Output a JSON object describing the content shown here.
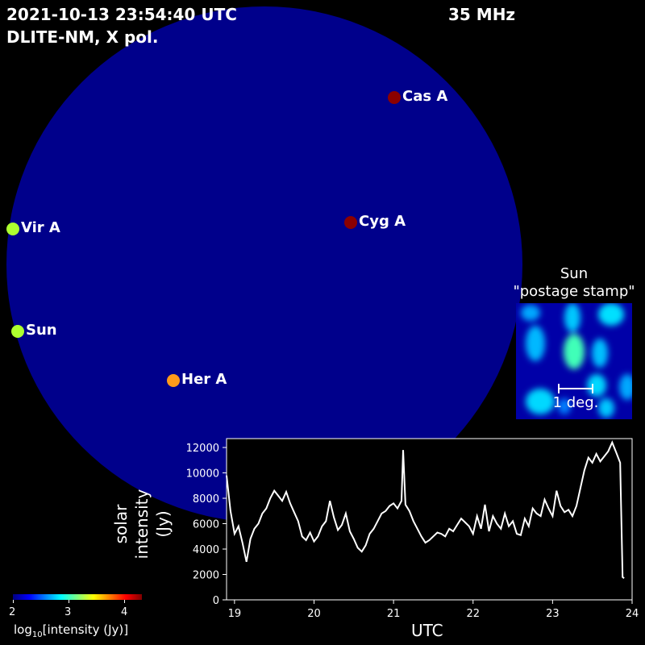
{
  "header": {
    "timestamp": "2021-10-13 23:54:40 UTC",
    "station": "DLITE-NM, X pol.",
    "frequency": "35 MHz"
  },
  "sky": {
    "color": "#00008b"
  },
  "sources": [
    {
      "name": "Cas A",
      "color": "#8b0000"
    },
    {
      "name": "Cyg A",
      "color": "#8b0000"
    },
    {
      "name": "Vir A",
      "color": "#adff2f"
    },
    {
      "name": "Sun",
      "color": "#adff2f"
    },
    {
      "name": "Her A",
      "color": "#ff9a1a"
    }
  ],
  "stamp": {
    "title_line1": "Sun",
    "title_line2": "\"postage stamp\"",
    "scale_label": "1 deg."
  },
  "colorbar": {
    "ticks": [
      "2",
      "3",
      "4"
    ],
    "label_prefix": "log",
    "label_sub": "10",
    "label_suffix": "[intensity (Jy)]"
  },
  "chart_data": {
    "type": "line",
    "xlabel": "UTC",
    "ylabel_lines": [
      "solar",
      "intensity",
      "(Jy)"
    ],
    "xlim": [
      18.9,
      24.0
    ],
    "ylim": [
      0,
      12700
    ],
    "xticks": [
      "19",
      "20",
      "21",
      "22",
      "23",
      "24"
    ],
    "yticks": [
      "0",
      "2000",
      "4000",
      "6000",
      "8000",
      "10000",
      "12000"
    ],
    "series": [
      {
        "color": "#ffffff",
        "x": [
          18.9,
          18.95,
          19.0,
          19.05,
          19.1,
          19.15,
          19.2,
          19.25,
          19.3,
          19.35,
          19.4,
          19.45,
          19.5,
          19.55,
          19.6,
          19.65,
          19.7,
          19.75,
          19.8,
          19.85,
          19.9,
          19.95,
          20.0,
          20.05,
          20.1,
          20.15,
          20.2,
          20.25,
          20.3,
          20.35,
          20.4,
          20.45,
          20.5,
          20.55,
          20.6,
          20.65,
          20.7,
          20.75,
          20.8,
          20.85,
          20.9,
          20.95,
          21.0,
          21.05,
          21.1,
          21.12,
          21.15,
          21.2,
          21.25,
          21.3,
          21.35,
          21.4,
          21.45,
          21.5,
          21.55,
          21.6,
          21.65,
          21.7,
          21.75,
          21.8,
          21.85,
          21.9,
          21.95,
          22.0,
          22.05,
          22.1,
          22.15,
          22.2,
          22.25,
          22.3,
          22.35,
          22.4,
          22.45,
          22.5,
          22.55,
          22.6,
          22.65,
          22.7,
          22.75,
          22.8,
          22.85,
          22.9,
          22.95,
          23.0,
          23.05,
          23.1,
          23.15,
          23.2,
          23.25,
          23.3,
          23.35,
          23.4,
          23.45,
          23.5,
          23.55,
          23.6,
          23.65,
          23.7,
          23.75,
          23.8,
          23.85,
          23.88,
          23.9
        ],
        "values": [
          9800,
          7000,
          5200,
          5800,
          4500,
          3000,
          4800,
          5600,
          6000,
          6800,
          7200,
          8000,
          8600,
          8200,
          7800,
          8500,
          7600,
          6900,
          6200,
          5000,
          4700,
          5300,
          4600,
          5000,
          5800,
          6200,
          7800,
          6500,
          5500,
          5900,
          6800,
          5400,
          4800,
          4100,
          3800,
          4300,
          5200,
          5600,
          6200,
          6800,
          7000,
          7400,
          7600,
          7200,
          7800,
          11800,
          7500,
          7000,
          6200,
          5600,
          5000,
          4500,
          4700,
          5000,
          5300,
          5200,
          5000,
          5600,
          5400,
          5900,
          6400,
          6100,
          5800,
          5200,
          6600,
          5600,
          7500,
          5400,
          6600,
          6000,
          5600,
          6800,
          5800,
          6200,
          5200,
          5100,
          6400,
          5800,
          7200,
          6800,
          6600,
          7900,
          7200,
          6600,
          8600,
          7400,
          6900,
          7100,
          6600,
          7400,
          8800,
          10200,
          11200,
          10800,
          11500,
          10900,
          11300,
          11700,
          12400,
          11600,
          10800,
          1800,
          1700
        ]
      }
    ]
  }
}
